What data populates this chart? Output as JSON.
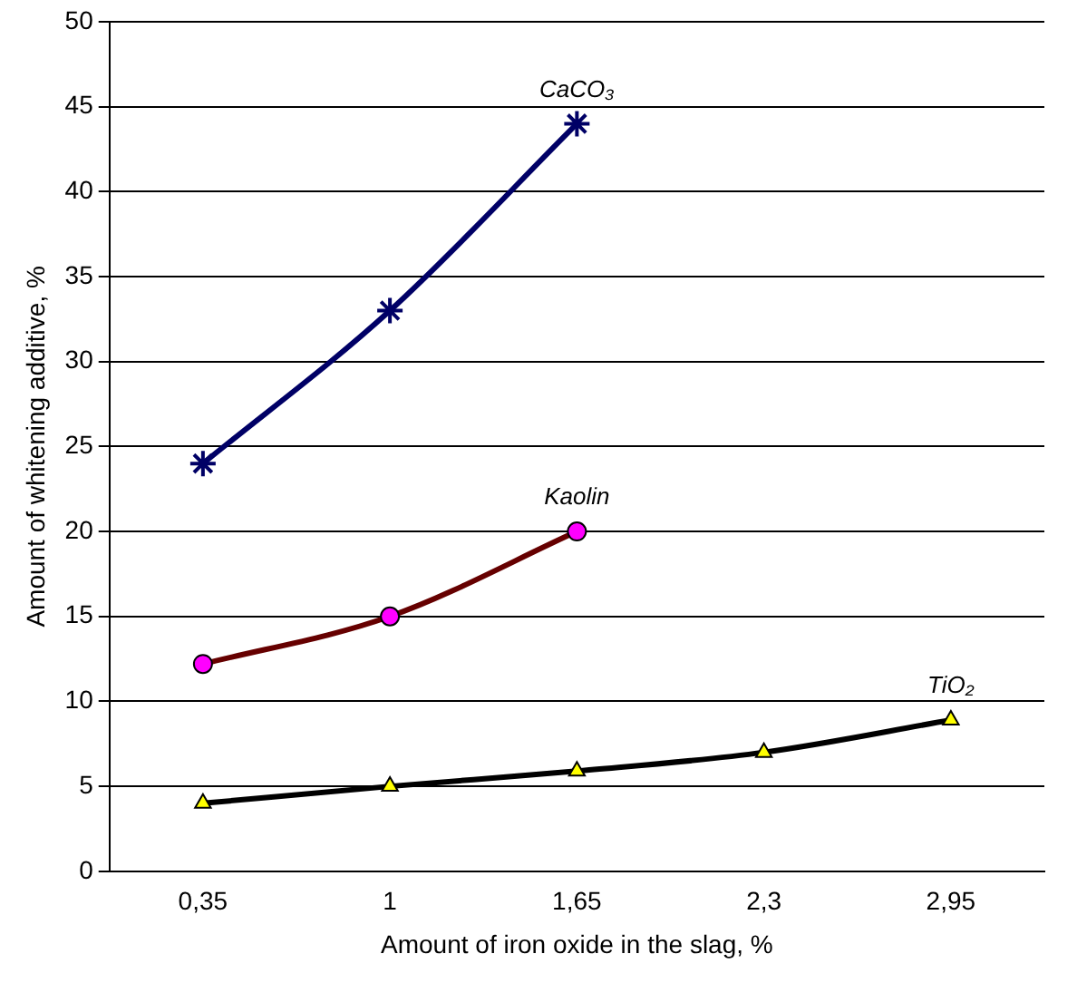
{
  "chart_data": {
    "type": "line",
    "xlabel": "Amount of iron oxide in the slag, %",
    "ylabel": "Amount of whitening additive, %",
    "categories": [
      "0,35",
      "1",
      "1,65",
      "2,3",
      "2,95"
    ],
    "ylim": [
      0,
      50
    ],
    "yticks": [
      0,
      5,
      10,
      15,
      20,
      25,
      30,
      35,
      40,
      45,
      50
    ],
    "grid": "y",
    "legend": false,
    "series": [
      {
        "name": "CaCO₃",
        "color": "#000066",
        "marker": "cross",
        "values": [
          24,
          33,
          44,
          null,
          null
        ]
      },
      {
        "name": "Kaolin",
        "color": "#660000",
        "marker": "circle",
        "colors": [
          "#ff00ff",
          "#ff00ff",
          "#ff00ff",
          "#ff00ff",
          "#ff00ff"
        ],
        "values": [
          12.2,
          15,
          20,
          null,
          null
        ]
      },
      {
        "name": "TiO₂",
        "color": "#000000",
        "marker": "triangle",
        "colors": [
          "#ffff00",
          "#ffff00",
          "#ffff00",
          "#ffff00",
          "#ffff00"
        ],
        "values": [
          4,
          5,
          5.9,
          7,
          8.9
        ]
      }
    ]
  }
}
